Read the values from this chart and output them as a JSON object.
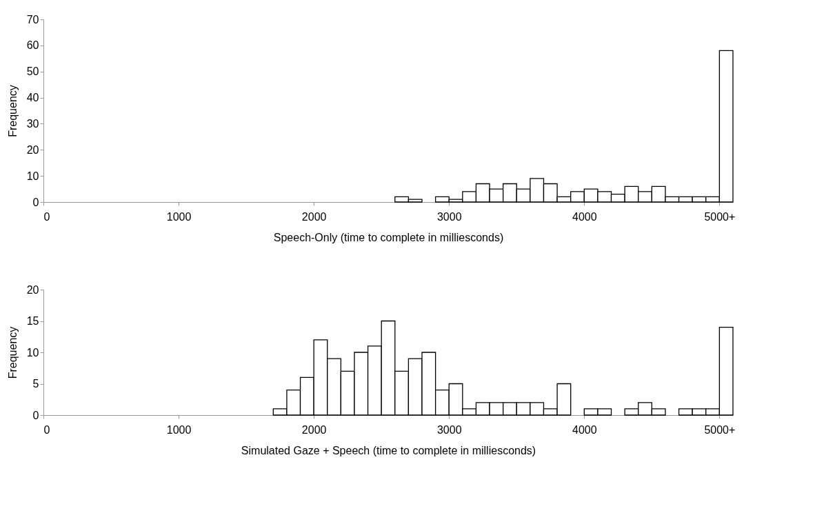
{
  "chart_data": [
    {
      "type": "histogram",
      "xlabel": "Speech-Only (time to complete in milliesconds)",
      "ylabel": "Frequency",
      "color": "#ffffff",
      "grid": false,
      "bins": [
        2600,
        2700,
        2800,
        2900,
        3000,
        3100,
        3200,
        3300,
        3400,
        3500,
        3600,
        3700,
        3800,
        3900,
        4000,
        4100,
        4200,
        4300,
        4400,
        4500,
        4600,
        4700,
        4800,
        4900,
        5000,
        5100
      ],
      "values": [
        2,
        1,
        0,
        2,
        1,
        4,
        7,
        5,
        7,
        5,
        9,
        7,
        2,
        4,
        5,
        4,
        3,
        6,
        4,
        6,
        2,
        2,
        2,
        2,
        58
      ],
      "xlim": [
        0,
        5100
      ],
      "xticks": [
        0,
        1000,
        2000,
        3000,
        4000,
        {
          "value": 5000,
          "label": "5000+"
        }
      ],
      "ylim": [
        0,
        70
      ],
      "yticks": [
        0,
        10,
        20,
        30,
        40,
        50,
        60,
        70
      ]
    },
    {
      "type": "histogram",
      "xlabel": "Simulated Gaze + Speech (time to complete in milliesconds)",
      "ylabel": "Frequency",
      "color": "#ffffff",
      "grid": false,
      "bins": [
        1700,
        1800,
        1900,
        2000,
        2100,
        2200,
        2300,
        2400,
        2500,
        2600,
        2700,
        2800,
        2900,
        3000,
        3100,
        3200,
        3300,
        3400,
        3500,
        3600,
        3700,
        3800,
        3900,
        4000,
        4100,
        4200,
        4300,
        4400,
        4500,
        4600,
        4700,
        4800,
        4900,
        5000,
        5100
      ],
      "values": [
        1,
        4,
        6,
        12,
        9,
        7,
        10,
        11,
        15,
        7,
        9,
        10,
        4,
        5,
        1,
        2,
        2,
        2,
        2,
        2,
        1,
        5,
        0,
        1,
        1,
        0,
        1,
        2,
        1,
        0,
        1,
        1,
        1,
        14
      ],
      "xlim": [
        0,
        5100
      ],
      "xticks": [
        0,
        1000,
        2000,
        3000,
        4000,
        {
          "value": 5000,
          "label": "5000+"
        }
      ],
      "ylim": [
        0,
        20
      ],
      "yticks": [
        0,
        5,
        10,
        15,
        20
      ]
    }
  ]
}
